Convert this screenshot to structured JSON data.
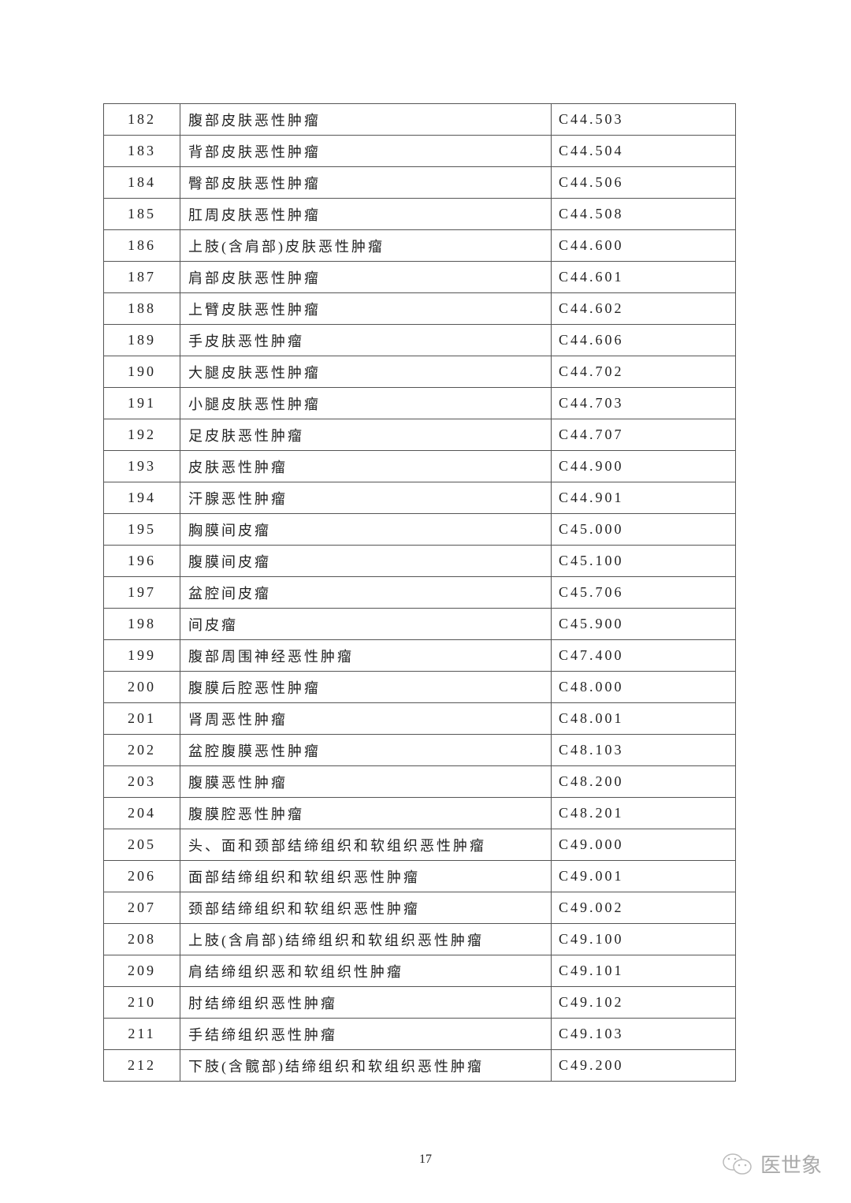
{
  "table": {
    "rows": [
      {
        "no": "182",
        "name": "腹部皮肤恶性肿瘤",
        "code": "C44.503"
      },
      {
        "no": "183",
        "name": "背部皮肤恶性肿瘤",
        "code": "C44.504"
      },
      {
        "no": "184",
        "name": "臀部皮肤恶性肿瘤",
        "code": "C44.506"
      },
      {
        "no": "185",
        "name": "肛周皮肤恶性肿瘤",
        "code": "C44.508"
      },
      {
        "no": "186",
        "name": "上肢(含肩部)皮肤恶性肿瘤",
        "code": "C44.600"
      },
      {
        "no": "187",
        "name": "肩部皮肤恶性肿瘤",
        "code": "C44.601"
      },
      {
        "no": "188",
        "name": "上臂皮肤恶性肿瘤",
        "code": "C44.602"
      },
      {
        "no": "189",
        "name": "手皮肤恶性肿瘤",
        "code": "C44.606"
      },
      {
        "no": "190",
        "name": "大腿皮肤恶性肿瘤",
        "code": "C44.702"
      },
      {
        "no": "191",
        "name": "小腿皮肤恶性肿瘤",
        "code": "C44.703"
      },
      {
        "no": "192",
        "name": "足皮肤恶性肿瘤",
        "code": "C44.707"
      },
      {
        "no": "193",
        "name": "皮肤恶性肿瘤",
        "code": "C44.900"
      },
      {
        "no": "194",
        "name": "汗腺恶性肿瘤",
        "code": "C44.901"
      },
      {
        "no": "195",
        "name": "胸膜间皮瘤",
        "code": "C45.000"
      },
      {
        "no": "196",
        "name": "腹膜间皮瘤",
        "code": "C45.100"
      },
      {
        "no": "197",
        "name": "盆腔间皮瘤",
        "code": "C45.706"
      },
      {
        "no": "198",
        "name": "间皮瘤",
        "code": "C45.900"
      },
      {
        "no": "199",
        "name": "腹部周围神经恶性肿瘤",
        "code": "C47.400"
      },
      {
        "no": "200",
        "name": "腹膜后腔恶性肿瘤",
        "code": "C48.000"
      },
      {
        "no": "201",
        "name": "肾周恶性肿瘤",
        "code": "C48.001"
      },
      {
        "no": "202",
        "name": "盆腔腹膜恶性肿瘤",
        "code": "C48.103"
      },
      {
        "no": "203",
        "name": "腹膜恶性肿瘤",
        "code": "C48.200"
      },
      {
        "no": "204",
        "name": "腹膜腔恶性肿瘤",
        "code": "C48.201"
      },
      {
        "no": "205",
        "name": "头、面和颈部结缔组织和软组织恶性肿瘤",
        "code": "C49.000"
      },
      {
        "no": "206",
        "name": "面部结缔组织和软组织恶性肿瘤",
        "code": "C49.001"
      },
      {
        "no": "207",
        "name": "颈部结缔组织和软组织恶性肿瘤",
        "code": "C49.002"
      },
      {
        "no": "208",
        "name": "上肢(含肩部)结缔组织和软组织恶性肿瘤",
        "code": "C49.100"
      },
      {
        "no": "209",
        "name": "肩结缔组织恶和软组织性肿瘤",
        "code": "C49.101"
      },
      {
        "no": "210",
        "name": "肘结缔组织恶性肿瘤",
        "code": "C49.102"
      },
      {
        "no": "211",
        "name": "手结缔组织恶性肿瘤",
        "code": "C49.103"
      },
      {
        "no": "212",
        "name": "下肢(含髋部)结缔组织和软组织恶性肿瘤",
        "code": "C49.200"
      }
    ]
  },
  "page_number": "17",
  "watermark": {
    "text": "医世象",
    "icon": "wechat-icon"
  }
}
